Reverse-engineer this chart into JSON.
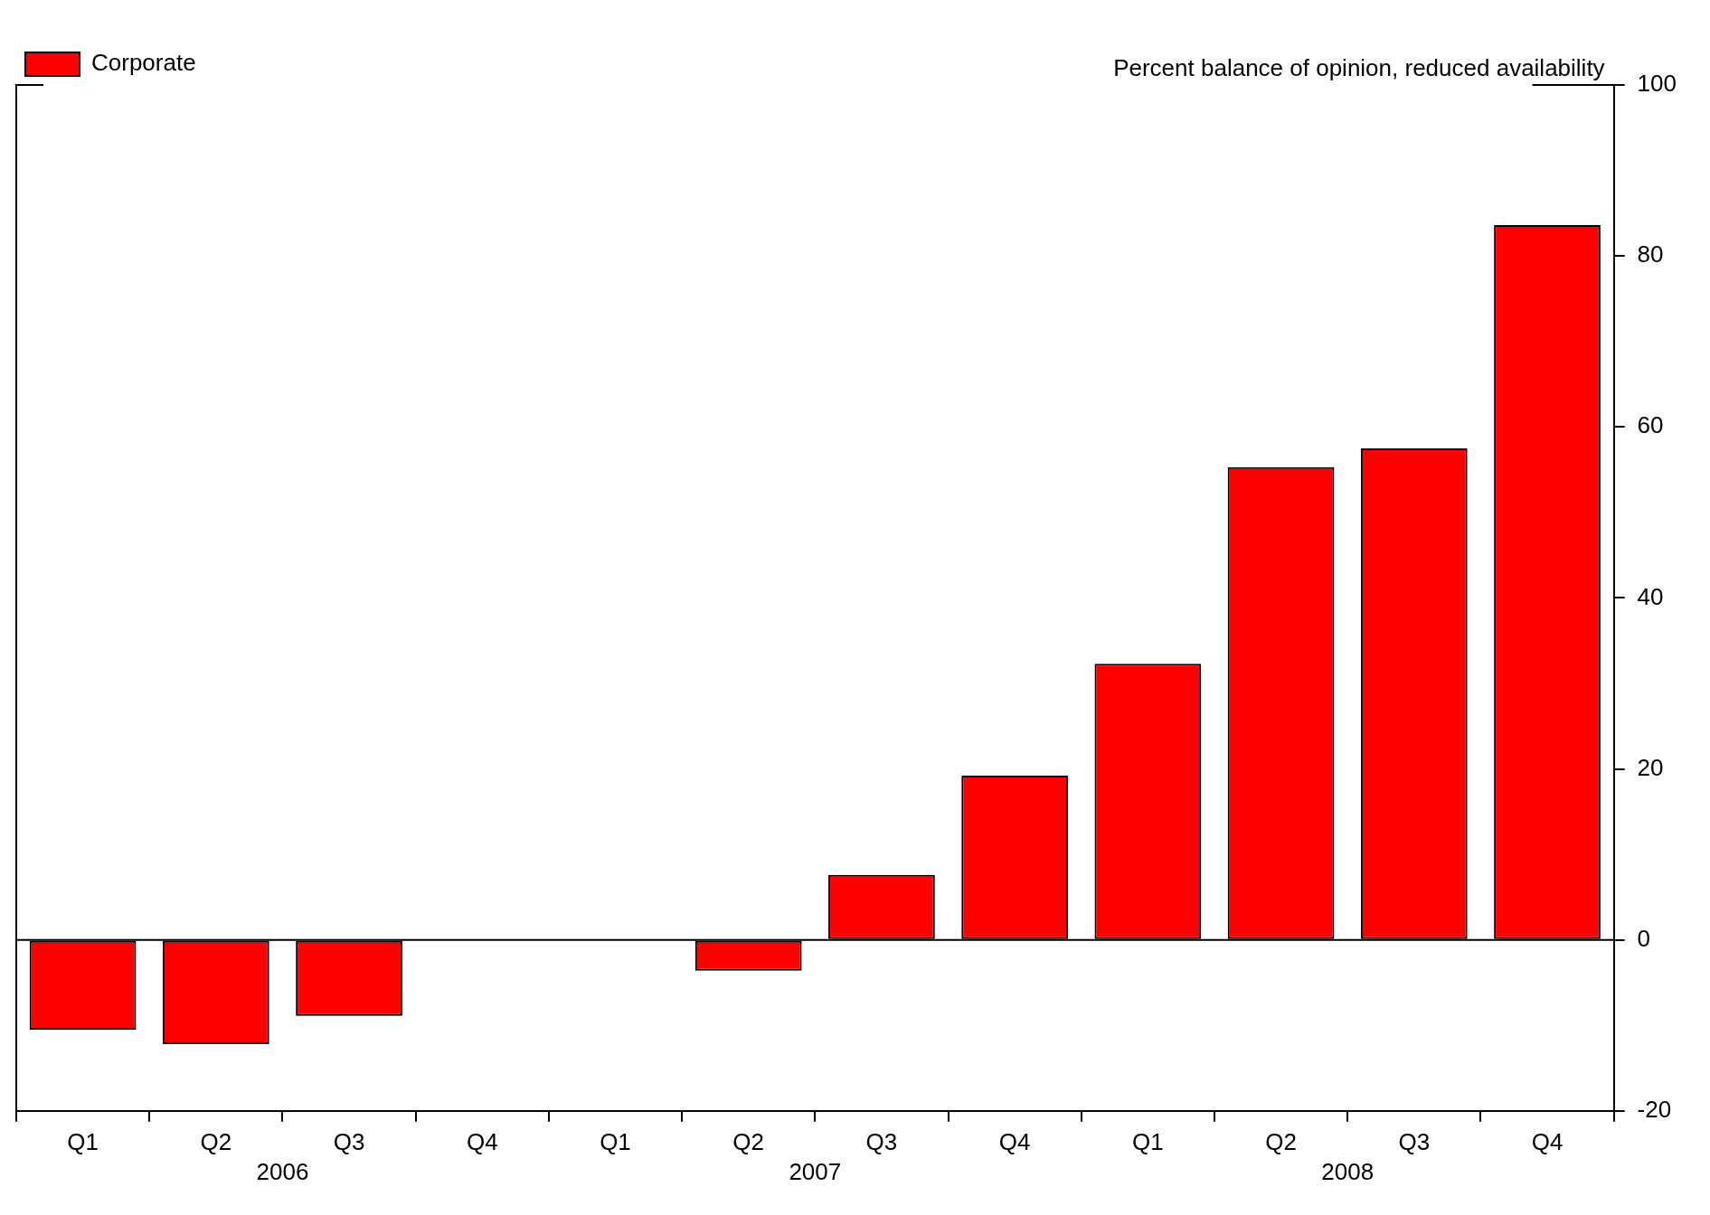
{
  "chart_data": {
    "type": "bar",
    "ylabel": "Percent balance of opinion, reduced availability",
    "categories": [
      "Q1",
      "Q2",
      "Q3",
      "Q4",
      "Q1",
      "Q2",
      "Q3",
      "Q4",
      "Q1",
      "Q2",
      "Q3",
      "Q4"
    ],
    "series": [
      {
        "name": "Corporate",
        "color": "#ff0000",
        "values": [
          -10.5,
          -12.2,
          -8.9,
          0,
          0,
          -3.6,
          7.6,
          19.2,
          32.3,
          55.3,
          57.5,
          83.6
        ]
      }
    ],
    "annotations": [
      "2006",
      "2007",
      "2008"
    ],
    "ref_lines": [
      {
        "axis": "y",
        "value": 0
      }
    ],
    "ylim": [
      -20,
      100
    ],
    "yticks": [
      -20,
      0,
      20,
      40,
      60,
      80,
      100
    ],
    "grid": false,
    "legend": "top left"
  }
}
